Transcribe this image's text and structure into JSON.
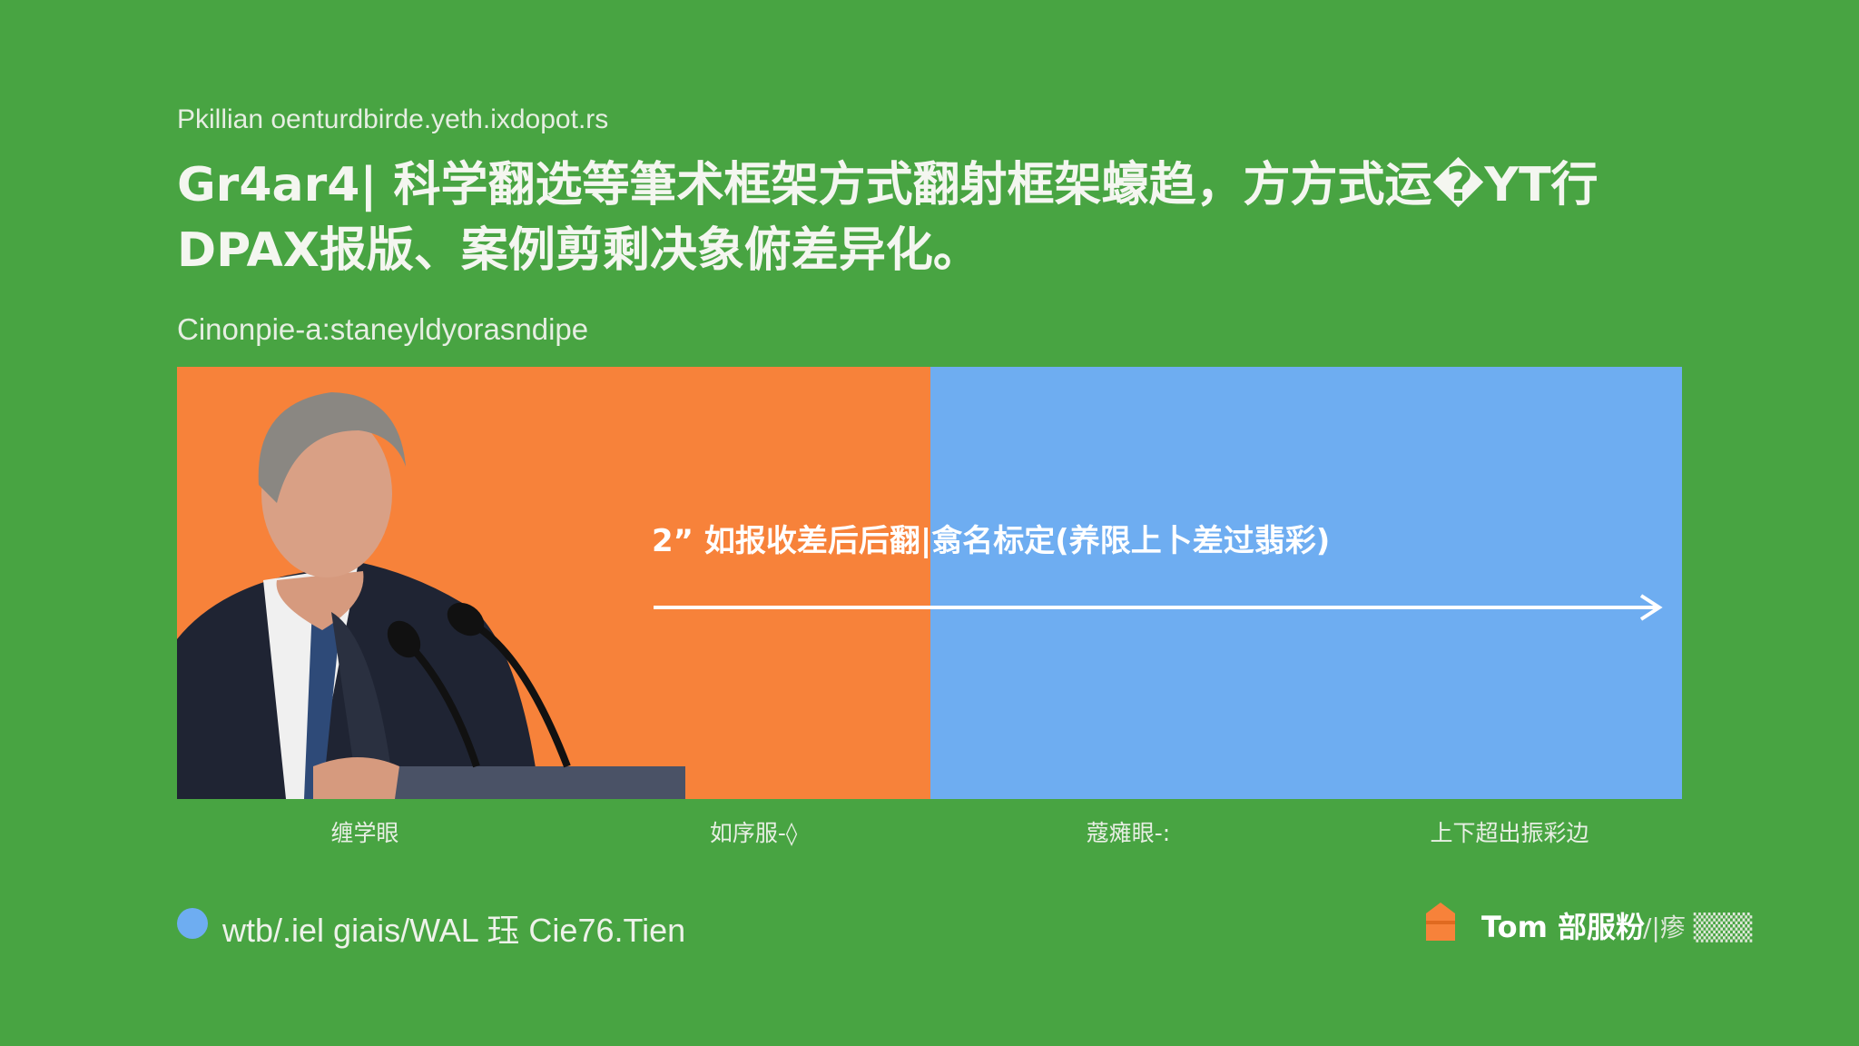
{
  "header": {
    "kicker": "Pkillian oenturdbirde.yeth.ixdopot.rs",
    "title_line1": "Gr4ar4| 科学翻选等筆术框架方式翻射框架蠔趋，方方式运�YT行",
    "title_line2": "DPAX报版、案例剪剩决象俯差异化。",
    "caption": "Cinonpie-a:staneyldyorasndipe"
  },
  "panel": {
    "colors": {
      "left": "#f7823a",
      "right": "#6eadf1",
      "background": "#48a442"
    },
    "arrow_text": "2” 如报收差后后翻|翕名标定(养限上卜差过翡彩)",
    "photo": "speaker-at-podium"
  },
  "axis_labels": [
    "缠学眼",
    "如序服-◊",
    "蔻瘫眼-:",
    "上下超出振彩边"
  ],
  "footer": {
    "source_text": "wtb/.iel giais/WAL 珏 Cie76.Tien",
    "logo_text": "Tom 部服粉",
    "logo_extra": "/|瘆 ▒▒▒"
  }
}
